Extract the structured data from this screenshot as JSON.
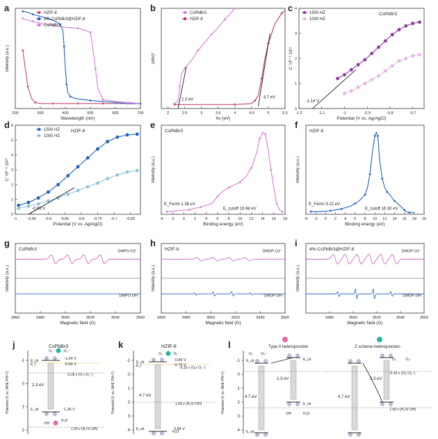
{
  "figure": {
    "panel_letters": [
      "a",
      "b",
      "c",
      "d",
      "e",
      "f",
      "g",
      "h",
      "i",
      "j",
      "k",
      "l"
    ]
  },
  "chart_data": [
    {
      "id": "a",
      "type": "line",
      "xlabel": "Wavelength (nm)",
      "ylabel": "Intensity (a.u.)",
      "xlim": [
        200,
        700
      ],
      "ylim": [
        0,
        1
      ],
      "xticks": [
        200,
        300,
        400,
        500,
        600,
        700
      ],
      "legend_position": "top-left",
      "series": [
        {
          "name": "HZIF-8",
          "color": "#c14a6a",
          "x": [
            230,
            240,
            250,
            265,
            280,
            300,
            350,
            400,
            450,
            500,
            550,
            600,
            650,
            700
          ],
          "y": [
            0.58,
            0.4,
            0.22,
            0.1,
            0.06,
            0.05,
            0.05,
            0.05,
            0.05,
            0.05,
            0.05,
            0.05,
            0.05,
            0.05
          ]
        },
        {
          "name": "4%-CsPbBr3@HZIF-8",
          "color": "#1f5fbf",
          "x": [
            230,
            250,
            270,
            300,
            330,
            360,
            380,
            390,
            395,
            400,
            405,
            410,
            420,
            440,
            500,
            550,
            600,
            650,
            700
          ],
          "y": [
            0.97,
            0.96,
            0.94,
            0.92,
            0.9,
            0.87,
            0.84,
            0.78,
            0.62,
            0.4,
            0.24,
            0.16,
            0.12,
            0.1,
            0.08,
            0.07,
            0.06,
            0.05,
            0.05
          ]
        },
        {
          "name": "CsPbBr3",
          "color": "#d17ed1",
          "x": [
            230,
            250,
            270,
            300,
            350,
            400,
            450,
            480,
            500,
            510,
            520,
            530,
            550,
            600,
            650,
            700
          ],
          "y": [
            0.9,
            0.88,
            0.87,
            0.85,
            0.83,
            0.81,
            0.8,
            0.78,
            0.76,
            0.6,
            0.4,
            0.2,
            0.09,
            0.07,
            0.06,
            0.05
          ]
        }
      ]
    },
    {
      "id": "b",
      "type": "line",
      "xlabel": "hv (eV)",
      "ylabel": "(αhv)²",
      "xlim": [
        1.8,
        5.5
      ],
      "ylim": [
        0,
        1
      ],
      "xticks": [
        2.0,
        2.5,
        3.0,
        3.5,
        4.0,
        4.5,
        5.0,
        5.5
      ],
      "legend_position": "top-left",
      "annotations": [
        "2.3 eV",
        "4.7 eV"
      ],
      "series": [
        {
          "name": "CsPbBr3",
          "color": "#d17ed1",
          "x": [
            2.2,
            2.3,
            2.35,
            2.4,
            2.5,
            2.7,
            2.9,
            3.1,
            3.3,
            3.5,
            3.7,
            3.9,
            4.0
          ],
          "y": [
            0.05,
            0.08,
            0.22,
            0.34,
            0.4,
            0.48,
            0.58,
            0.66,
            0.74,
            0.81,
            0.89,
            0.96,
            1.0
          ]
        },
        {
          "name": "HZIF-8",
          "color": "#b83a5a",
          "x": [
            2.2,
            3.0,
            4.0,
            4.5,
            4.6,
            4.7,
            4.8,
            4.9,
            5.0,
            5.2,
            5.4,
            5.5
          ],
          "y": [
            0.04,
            0.04,
            0.04,
            0.05,
            0.08,
            0.13,
            0.3,
            0.5,
            0.65,
            0.85,
            0.95,
            0.98
          ]
        }
      ]
    },
    {
      "id": "c",
      "type": "scatter",
      "title": "CsPbBr3",
      "xlabel": "Potential (V vs. Ag/AgCl)",
      "ylabel": "C⁻²/F⁻²·10¹¹",
      "xlim": [
        -1.2,
        -0.65
      ],
      "ylim": [
        0,
        4
      ],
      "xticks": [
        -1.2,
        -1.1,
        -1.0,
        -0.9,
        -0.8,
        -0.7
      ],
      "yticks": [
        0,
        1,
        2,
        3,
        4
      ],
      "legend_position": "top-left",
      "annotations": [
        "-1.14 V"
      ],
      "series": [
        {
          "name": "1500 HZ",
          "color": "#8a3a9a",
          "x": [
            -1.03,
            -1.0,
            -0.97,
            -0.94,
            -0.91,
            -0.88,
            -0.85,
            -0.82,
            -0.79,
            -0.76,
            -0.73,
            -0.7,
            -0.67
          ],
          "y": [
            1.2,
            1.35,
            1.55,
            1.75,
            1.95,
            2.2,
            2.45,
            2.7,
            2.95,
            3.15,
            3.3,
            3.4,
            3.45
          ]
        },
        {
          "name": "1000 HZ",
          "color": "#e3b6e3",
          "x": [
            -1.0,
            -0.97,
            -0.94,
            -0.91,
            -0.88,
            -0.85,
            -0.82,
            -0.79,
            -0.76,
            -0.73,
            -0.7,
            -0.67
          ],
          "y": [
            0.6,
            0.7,
            0.85,
            1.0,
            1.15,
            1.3,
            1.5,
            1.7,
            1.9,
            2.0,
            2.1,
            2.15
          ]
        }
      ]
    },
    {
      "id": "d",
      "type": "scatter",
      "title": "HZIF-8",
      "xlabel": "Potential (V vs. Ag/AgCl)",
      "ylabel": "C⁻²/F⁻²·10¹⁰",
      "xlim": [
        -1.0,
        -0.62
      ],
      "ylim": [
        0,
        6
      ],
      "xticks": [
        -1.0,
        -0.95,
        -0.9,
        -0.85,
        -0.8,
        -0.75,
        -0.7,
        -0.65
      ],
      "yticks": [
        0,
        1,
        2,
        3,
        4,
        5,
        6
      ],
      "legend_position": "top-left",
      "annotations": [
        "-0.96 V"
      ],
      "series": [
        {
          "name": "1500 HZ",
          "color": "#1f5fbf",
          "x": [
            -0.99,
            -0.96,
            -0.93,
            -0.9,
            -0.87,
            -0.84,
            -0.81,
            -0.78,
            -0.75,
            -0.72,
            -0.69,
            -0.66,
            -0.63
          ],
          "y": [
            0.6,
            0.8,
            1.1,
            1.5,
            2.0,
            2.6,
            3.2,
            3.8,
            4.4,
            4.9,
            5.2,
            5.35,
            5.4
          ]
        },
        {
          "name": "1000 HZ",
          "color": "#8fc4d8",
          "x": [
            -0.99,
            -0.96,
            -0.93,
            -0.9,
            -0.87,
            -0.84,
            -0.81,
            -0.78,
            -0.75,
            -0.72,
            -0.69,
            -0.66,
            -0.63
          ],
          "y": [
            0.4,
            0.55,
            0.7,
            0.9,
            1.1,
            1.35,
            1.6,
            1.85,
            2.1,
            2.4,
            2.65,
            2.85,
            2.95
          ]
        }
      ]
    },
    {
      "id": "e",
      "type": "line",
      "title": "CsPbBr3",
      "xlabel": "Binding energy (eV)",
      "ylabel": "Intensity (a.u.)",
      "xlim": [
        -4,
        18
      ],
      "ylim": [
        0,
        1
      ],
      "xticks": [
        -4,
        -2,
        0,
        2,
        4,
        6,
        8,
        10,
        12,
        14,
        16,
        18
      ],
      "annotations": [
        "E_Fermi 1.38 eV",
        "E_cutoff 16.98 eV"
      ],
      "series": [
        {
          "name": "CsPbBr3",
          "color": "#d17ed1",
          "x": [
            -3,
            -1,
            1,
            1.38,
            3,
            5,
            6,
            7,
            8,
            9,
            10,
            11,
            12,
            13,
            13.5,
            14,
            14.5,
            15,
            15.5,
            16,
            16.5,
            17,
            17.5
          ],
          "y": [
            0.03,
            0.04,
            0.05,
            0.06,
            0.08,
            0.12,
            0.2,
            0.26,
            0.3,
            0.33,
            0.36,
            0.42,
            0.52,
            0.7,
            0.85,
            0.92,
            0.9,
            0.72,
            0.5,
            0.3,
            0.12,
            0.05,
            0.03
          ]
        }
      ]
    },
    {
      "id": "f",
      "type": "line",
      "title": "HZIF-8",
      "xlabel": "Binding energy (eV)",
      "ylabel": "Intensity (a.u.)",
      "xlim": [
        -4,
        20
      ],
      "ylim": [
        0,
        1
      ],
      "xticks": [
        -4,
        -2,
        0,
        2,
        4,
        6,
        8,
        10,
        12,
        14,
        16,
        18,
        20
      ],
      "annotations": [
        "E_Fermi 3.22 eV",
        "E_cutoff 16.30 eV"
      ],
      "series": [
        {
          "name": "HZIF-8",
          "color": "#1f5fbf",
          "x": [
            -3,
            -1,
            1,
            2,
            3.22,
            5,
            6,
            7,
            8,
            8.5,
            9,
            9.5,
            10,
            10.3,
            10.6,
            11,
            11.5,
            12,
            12.5,
            13,
            14,
            15,
            16,
            16.3,
            17,
            18
          ],
          "y": [
            0.03,
            0.03,
            0.04,
            0.05,
            0.06,
            0.09,
            0.12,
            0.16,
            0.22,
            0.3,
            0.45,
            0.7,
            0.88,
            0.92,
            0.88,
            0.6,
            0.4,
            0.3,
            0.25,
            0.22,
            0.15,
            0.1,
            0.05,
            0.03,
            0.02,
            0.02
          ]
        }
      ]
    },
    {
      "id": "g",
      "type": "line",
      "title": "CsPbBr3",
      "xlabel": "Magnetic field (G)",
      "ylabel": "Intensity (a.u.)",
      "xlim": [
        3460,
        3560
      ],
      "xticks": [
        3460,
        3480,
        3500,
        3520,
        3540,
        3560
      ],
      "series": [
        {
          "name": "DMPO-O2⁻",
          "color": "#c45bb8",
          "pattern": "quartet",
          "amp": 0.9,
          "center": 3510,
          "spacing": 13
        },
        {
          "name": "DMPO-OH",
          "color": "#1f5fbf",
          "pattern": "flat",
          "amp": 0.05
        }
      ]
    },
    {
      "id": "h",
      "type": "line",
      "title": "HZIF-8",
      "xlabel": "Magnetic field (G)",
      "ylabel": "Intensity (a.u.)",
      "xlim": [
        3460,
        3560
      ],
      "xticks": [
        3460,
        3480,
        3500,
        3520,
        3540,
        3560
      ],
      "series": [
        {
          "name": "DMOP-O2⁻",
          "color": "#c45bb8",
          "pattern": "quartet",
          "amp": 0.35,
          "center": 3510,
          "spacing": 13
        },
        {
          "name": "DMOP-OH",
          "color": "#1f5fbf",
          "pattern": "quartetOH",
          "amp": 0.45,
          "center": 3510,
          "spacing": 15
        }
      ]
    },
    {
      "id": "i",
      "type": "line",
      "title": "4%-CsPbBr3@HZIF-8",
      "xlabel": "Magnetic field (G)",
      "ylabel": "Intensity (a.u.)",
      "xlim": [
        3460,
        3560
      ],
      "xticks": [
        3480,
        3500,
        3520,
        3540,
        3560
      ],
      "series": [
        {
          "name": "DMOP-O2⁻",
          "color": "#c45bb8",
          "pattern": "sextet",
          "amp": 1.0,
          "center": 3510,
          "spacing": 10
        },
        {
          "name": "DMOP-OH",
          "color": "#1f5fbf",
          "pattern": "quartetOH",
          "amp": 1.0,
          "center": 3510,
          "spacing": 15
        }
      ]
    }
  ],
  "schemes": {
    "j": {
      "title": "CsPbBr3",
      "ylabel": "Potential (V vs. NHE PH=7)",
      "yticks": [
        "-1",
        "0",
        "1",
        "2"
      ],
      "E_cb_label": "E_cb",
      "E_f_label": "E_f",
      "E_vb_label": "E_vb",
      "cb_value": "-1.04 V",
      "ef_value": "-0.94 V",
      "vb_value": "1.26 V",
      "gap": "2.3 eV",
      "redox1": "-0.33 v (O₂/·O₂⁻)",
      "redox2": "1.99 v (H₂O/·OH)",
      "species": {
        "o2": "O₂",
        "o2rad": "·O₂⁻",
        "oh": "·OH",
        "h2o": "H₂O"
      }
    },
    "k": {
      "title": "HZIF-8",
      "ylabel": "Potential (V vs. NHE PH=7)",
      "yticks": [
        "-1",
        "0",
        "1",
        "2",
        "3",
        "4"
      ],
      "E_cb_label": "E_cb",
      "E_f_label": "E_f",
      "E_vb_label": "E_vb",
      "cb_value": "-0.86 V",
      "ef_value": "-0.76 V",
      "vb_value": "3.84 V",
      "gap": "4.7 eV",
      "redox1": "-0.33 v (O₂/·O₂⁻)",
      "redox2": "1.99 v (H₂O/·OH)",
      "species": {
        "o2": "O₂",
        "o2rad": "·O₂⁻",
        "h2o": "H₂O"
      }
    },
    "l": {
      "ylabel": "Potential (V vs. NHE PH=7)",
      "yticks": [
        "-1",
        "0",
        "1",
        "2",
        "3",
        "4"
      ],
      "typeII_title": "Type II heterojunction",
      "zscheme_title": "Z scheme heterojunction",
      "gap_left": "4.7 eV",
      "gap_right": "2.3 eV",
      "redox1": "-0.33 v (O₂/·O₂⁻)",
      "redox2": "1.99 v (H₂O/·OH)",
      "labels": {
        "ecb": "E_cb",
        "evb": "E_vb",
        "oh": "·OH",
        "h2o": "H₂O",
        "o2": "O₂",
        "o2rad": "·O₂⁻"
      }
    }
  }
}
